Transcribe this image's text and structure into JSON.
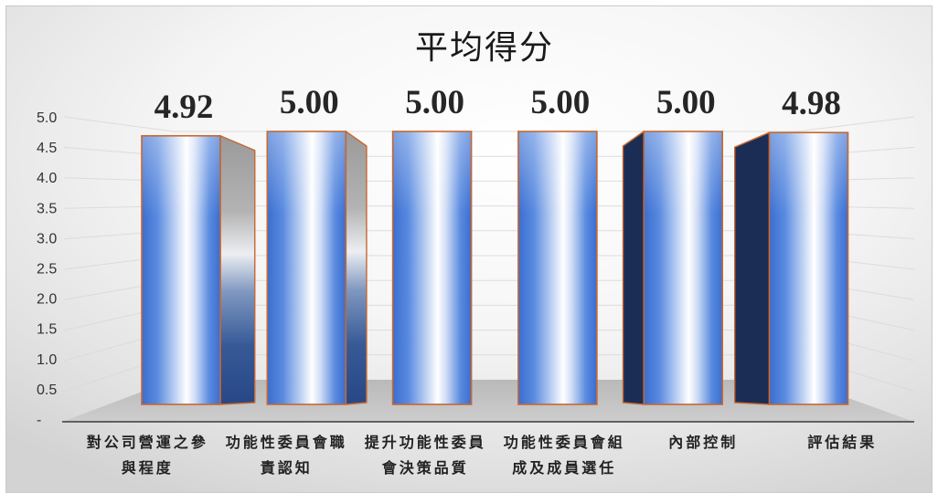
{
  "chart_data": {
    "type": "bar",
    "three_d": true,
    "title": "平均得分",
    "categories": [
      "對公司營運之參與程度",
      "功能性委員會職責認知",
      "提升功能性委員會決策品質",
      "功能性委員會組成及成員選任",
      "內部控制",
      "評估結果"
    ],
    "values": [
      4.92,
      5.0,
      5.0,
      5.0,
      5.0,
      4.98
    ],
    "data_labels": [
      "4.92",
      "5.00",
      "5.00",
      "5.00",
      "5.00",
      "4.98"
    ],
    "ylim": [
      0,
      5.0
    ],
    "y_ticks": [
      {
        "value": 5.0,
        "label": "5.0"
      },
      {
        "value": 4.5,
        "label": "4.5"
      },
      {
        "value": 4.0,
        "label": "4.0"
      },
      {
        "value": 3.5,
        "label": "3.5"
      },
      {
        "value": 3.0,
        "label": "3.0"
      },
      {
        "value": 2.5,
        "label": "2.5"
      },
      {
        "value": 2.0,
        "label": "2.0"
      },
      {
        "value": 1.5,
        "label": "1.5"
      },
      {
        "value": 1.0,
        "label": "1.0"
      },
      {
        "value": 0.5,
        "label": "0.5"
      },
      {
        "value": 0,
        "label": "-"
      }
    ],
    "grid": true
  },
  "colors": {
    "bar_base": "#5a8be0",
    "bar_dark": "#3a6dcf",
    "bar_highlight": "#ffffff",
    "bar_outline": "#c8672e",
    "side_top": "#9a9a9a",
    "side_bottom": "#274785",
    "side_left": "#1b2d55",
    "floor_back": "#b9b9b9",
    "floor_front": "#cdcdcd",
    "axis_line": "#3a3a3a",
    "gridline": "#d9d9d9",
    "background_center": "#ffffff",
    "background_edge": "#d3d3d3"
  }
}
